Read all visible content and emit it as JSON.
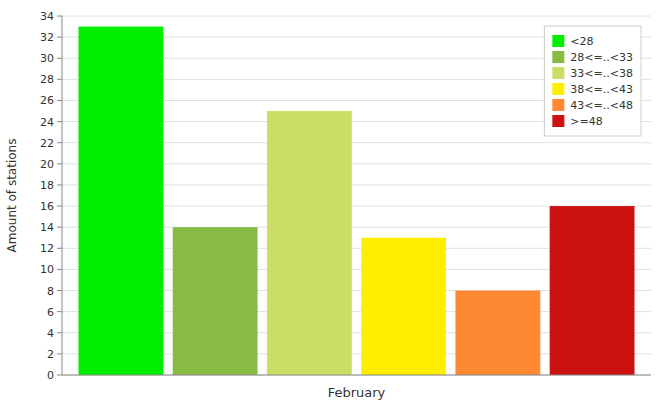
{
  "chart_data": {
    "type": "bar",
    "categories": [
      "February"
    ],
    "series": [
      {
        "name": "<28",
        "color": "#00EE00",
        "values": [
          33
        ]
      },
      {
        "name": "28<=..<33",
        "color": "#88BB44",
        "values": [
          14
        ]
      },
      {
        "name": "33<=..<38",
        "color": "#CCDD66",
        "values": [
          25
        ]
      },
      {
        "name": "38<=..<43",
        "color": "#FFEE00",
        "values": [
          13
        ]
      },
      {
        "name": "43<=..<48",
        "color": "#FF8833",
        "values": [
          8
        ]
      },
      {
        "name": ">=48",
        "color": "#CC1111",
        "values": [
          16
        ]
      }
    ],
    "y_label": "Amount of stations",
    "ylim": [
      0,
      34
    ],
    "yticks": [
      0,
      2,
      4,
      6,
      8,
      10,
      12,
      14,
      16,
      18,
      20,
      22,
      24,
      26,
      28,
      30,
      32,
      34
    ],
    "grid": true,
    "legend": "upper right"
  }
}
